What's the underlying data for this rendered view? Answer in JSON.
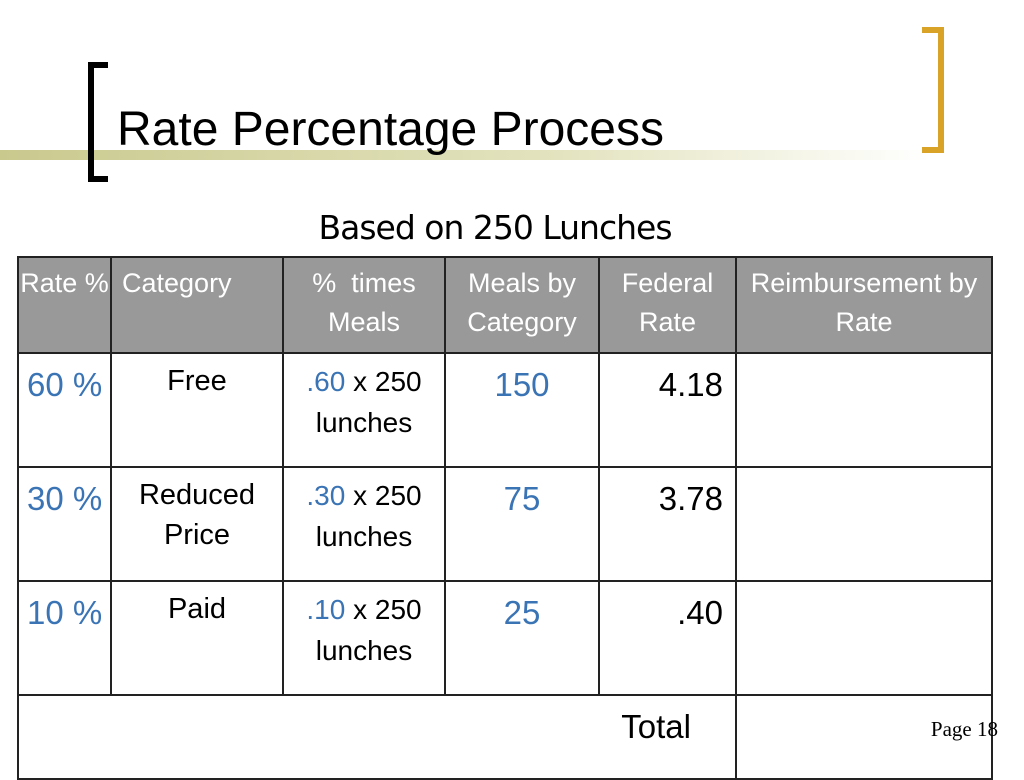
{
  "slide": {
    "title": "Rate Percentage Process",
    "subtitle": "Based on 250 Lunches",
    "page_label": "Page 18"
  },
  "table": {
    "headers": [
      "Rate %",
      "Category",
      "%  times Meals",
      "Meals by Category",
      "Federal Rate",
      "Reimbursement by Rate"
    ],
    "rows": [
      {
        "rate": "60 %",
        "category": "Free",
        "fraction": ".60",
        "multiplier": " x 250 lunches",
        "meals": "150",
        "federal_rate": "4.18",
        "reimbursement": ""
      },
      {
        "rate": "30 %",
        "category": "Reduced Price",
        "fraction": ".30",
        "multiplier": " x 250 lunches",
        "meals": "75",
        "federal_rate": "3.78",
        "reimbursement": ""
      },
      {
        "rate": "10 %",
        "category": "Paid",
        "fraction": ".10",
        "multiplier": " x 250 lunches",
        "meals": "25",
        "federal_rate": ".40",
        "reimbursement": ""
      }
    ],
    "total_label": "Total",
    "total_value": ""
  },
  "colors": {
    "header_bg": "#999999",
    "value_blue": "#3a74b5",
    "bracket_gold": "#d9a328",
    "accent_bar": "#c9c98e"
  }
}
